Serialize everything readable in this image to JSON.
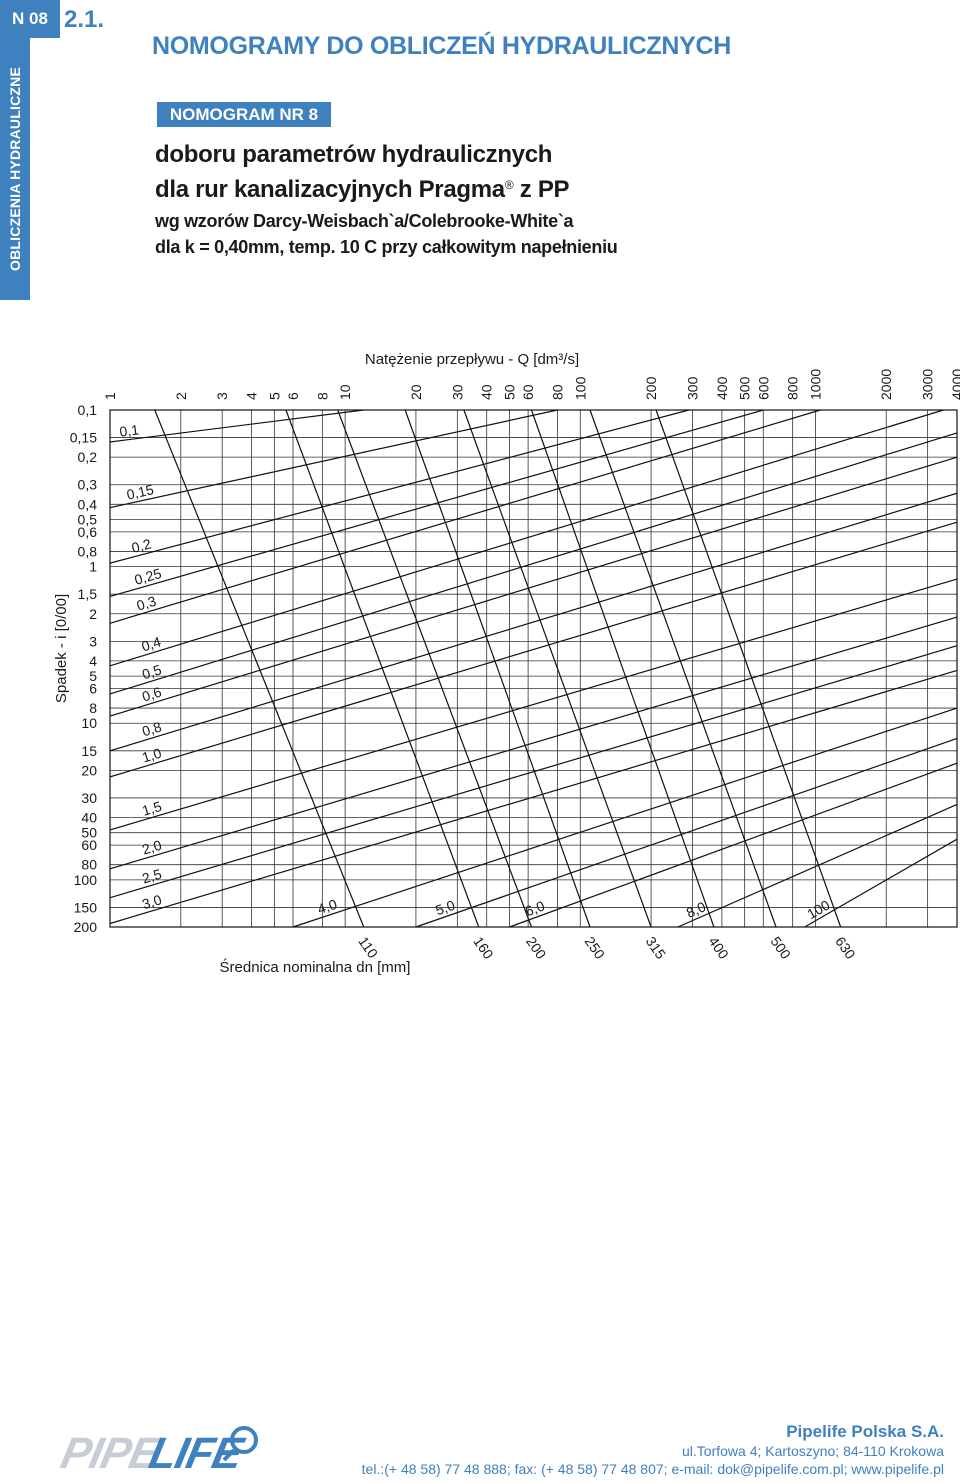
{
  "header": {
    "tab_label": "N 08",
    "sidebar_label": "OBLICZENIA HYDRAULICZNE",
    "section_number": "2.1.",
    "main_title": "NOMOGRAMY DO OBLICZEŃ HYDRAULICZNYCH",
    "badge": "NOMOGRAM NR 8",
    "subtitle_line1": "doboru parametrów hydraulicznych",
    "subtitle_line2": "dla rur kanalizacyjnych Pragma",
    "subtitle_reg": "®",
    "subtitle_line2_end": " z PP",
    "subtitle_line3": "wg wzorów Darcy-Weisbach`a/Colebrooke-White`a",
    "subtitle_line4": "dla k = 0,40mm, temp. 10 C przy całkowitym napełnieniu"
  },
  "chart_data": {
    "type": "nomogram",
    "title": "",
    "xlabel": "Natężenie przepływu - Q [dm³/s]",
    "ylabel": "Spadek - i [0/00]",
    "diameter_label": "Średnica nominalna dn [mm]",
    "x_scale": "log",
    "y_scale": "log",
    "xlim": [
      1,
      4000
    ],
    "ylim": [
      0.1,
      200
    ],
    "x_ticks": [
      1,
      2,
      3,
      4,
      5,
      6,
      8,
      10,
      20,
      30,
      40,
      50,
      60,
      80,
      100,
      200,
      300,
      400,
      500,
      600,
      800,
      1000,
      2000,
      3000,
      4000
    ],
    "x_tick_labels": [
      "1",
      "2",
      "3",
      "4",
      "5",
      "6",
      "8",
      "10",
      "20",
      "30",
      "40",
      "50",
      "60",
      "80",
      "100",
      "200",
      "300",
      "400",
      "500",
      "600",
      "800",
      "1000",
      "2000",
      "3000",
      "4000"
    ],
    "y_ticks": [
      0.1,
      0.15,
      0.2,
      0.3,
      0.4,
      0.5,
      0.6,
      0.8,
      1,
      1.5,
      2,
      3,
      4,
      5,
      6,
      8,
      10,
      15,
      20,
      30,
      40,
      50,
      60,
      80,
      100,
      150,
      200
    ],
    "y_tick_labels": [
      "0,1",
      "0,15",
      "0,2",
      "0,3",
      "0,4",
      "0,5",
      "0,6",
      "0,8",
      "1",
      "1,5",
      "2",
      "3",
      "4",
      "5",
      "6",
      "8",
      "10",
      "15",
      "20",
      "30",
      "40",
      "50",
      "60",
      "80",
      "100",
      "150",
      "200"
    ],
    "diameters": [
      {
        "name": "110",
        "points": [
          [
            1.55,
            0.1
          ],
          [
            12.0,
            200
          ]
        ]
      },
      {
        "name": "160",
        "points": [
          [
            5.6,
            0.1
          ],
          [
            37.0,
            200
          ]
        ]
      },
      {
        "name": "200",
        "points": [
          [
            9.3,
            0.1
          ],
          [
            62.0,
            200
          ]
        ]
      },
      {
        "name": "250",
        "points": [
          [
            18.0,
            0.1
          ],
          [
            110.0,
            200
          ]
        ]
      },
      {
        "name": "315",
        "points": [
          [
            32.0,
            0.1
          ],
          [
            200.0,
            200
          ]
        ]
      },
      {
        "name": "400",
        "points": [
          [
            62.0,
            0.1
          ],
          [
            370.0,
            200
          ]
        ]
      },
      {
        "name": "500",
        "points": [
          [
            110.0,
            0.1
          ],
          [
            680.0,
            200
          ]
        ]
      },
      {
        "name": "630",
        "points": [
          [
            210.0,
            0.1
          ],
          [
            1280.0,
            200
          ]
        ]
      }
    ],
    "velocities": [
      {
        "name": "0,1",
        "points": [
          [
            1.0,
            0.16
          ],
          [
            12.0,
            0.1
          ]
        ]
      },
      {
        "name": "0,15",
        "points": [
          [
            1.0,
            0.42
          ],
          [
            80.0,
            0.1
          ]
        ]
      },
      {
        "name": "0,2",
        "points": [
          [
            1.0,
            0.95
          ],
          [
            290.0,
            0.1
          ]
        ]
      },
      {
        "name": "0,25",
        "points": [
          [
            1.0,
            1.55
          ],
          [
            600.0,
            0.1
          ]
        ]
      },
      {
        "name": "0,3",
        "points": [
          [
            1.0,
            2.3
          ],
          [
            1050.0,
            0.1
          ]
        ]
      },
      {
        "name": "0,4",
        "points": [
          [
            1.0,
            4.3
          ],
          [
            3500.0,
            0.1
          ]
        ]
      },
      {
        "name": "0,5",
        "points": [
          [
            1.0,
            6.5
          ],
          [
            4000.0,
            0.14
          ]
        ]
      },
      {
        "name": "0,6",
        "points": [
          [
            1.0,
            9.0
          ],
          [
            4000.0,
            0.2
          ]
        ]
      },
      {
        "name": "0,8",
        "points": [
          [
            1.0,
            15.0
          ],
          [
            4000.0,
            0.34
          ]
        ]
      },
      {
        "name": "1,0",
        "points": [
          [
            1.0,
            22.0
          ],
          [
            4000.0,
            0.52
          ]
        ]
      },
      {
        "name": "1,5",
        "points": [
          [
            1.0,
            48.0
          ],
          [
            4000.0,
            1.2
          ]
        ]
      },
      {
        "name": "2,0",
        "points": [
          [
            1.0,
            85.0
          ],
          [
            4000.0,
            2.1
          ]
        ]
      },
      {
        "name": "2,5",
        "points": [
          [
            1.0,
            130.0
          ],
          [
            4000.0,
            3.2
          ]
        ]
      },
      {
        "name": "3,0",
        "points": [
          [
            1.0,
            190.0
          ],
          [
            4000.0,
            4.6
          ]
        ]
      },
      {
        "name": "4,0",
        "points": [
          [
            6.0,
            200.0
          ],
          [
            4000.0,
            8.0
          ]
        ]
      },
      {
        "name": "5,0",
        "points": [
          [
            20.0,
            200.0
          ],
          [
            4000.0,
            12.5
          ]
        ]
      },
      {
        "name": "6,0",
        "points": [
          [
            50.0,
            200.0
          ],
          [
            4000.0,
            18.0
          ]
        ]
      },
      {
        "name": "8,0",
        "points": [
          [
            260.0,
            200.0
          ],
          [
            4000.0,
            33.0
          ]
        ]
      },
      {
        "name": "100",
        "points": [
          [
            900.0,
            200.0
          ],
          [
            4000.0,
            55.0
          ]
        ]
      }
    ]
  },
  "footer": {
    "company": "Pipelife Polska S.A.",
    "address": "ul.Torfowa 4; Kartoszyno; 84-110 Krokowa",
    "contact": "tel.:(+ 48 58) 77 48 888; fax: (+ 48 58) 77 48 807; e-mail: dok@pipelife.com.pl; www.pipelife.pl",
    "logo_icon": "pipelife-logo-icon",
    "colors": {
      "accent": "#3f80bf",
      "ink": "#1a1a1a"
    }
  }
}
